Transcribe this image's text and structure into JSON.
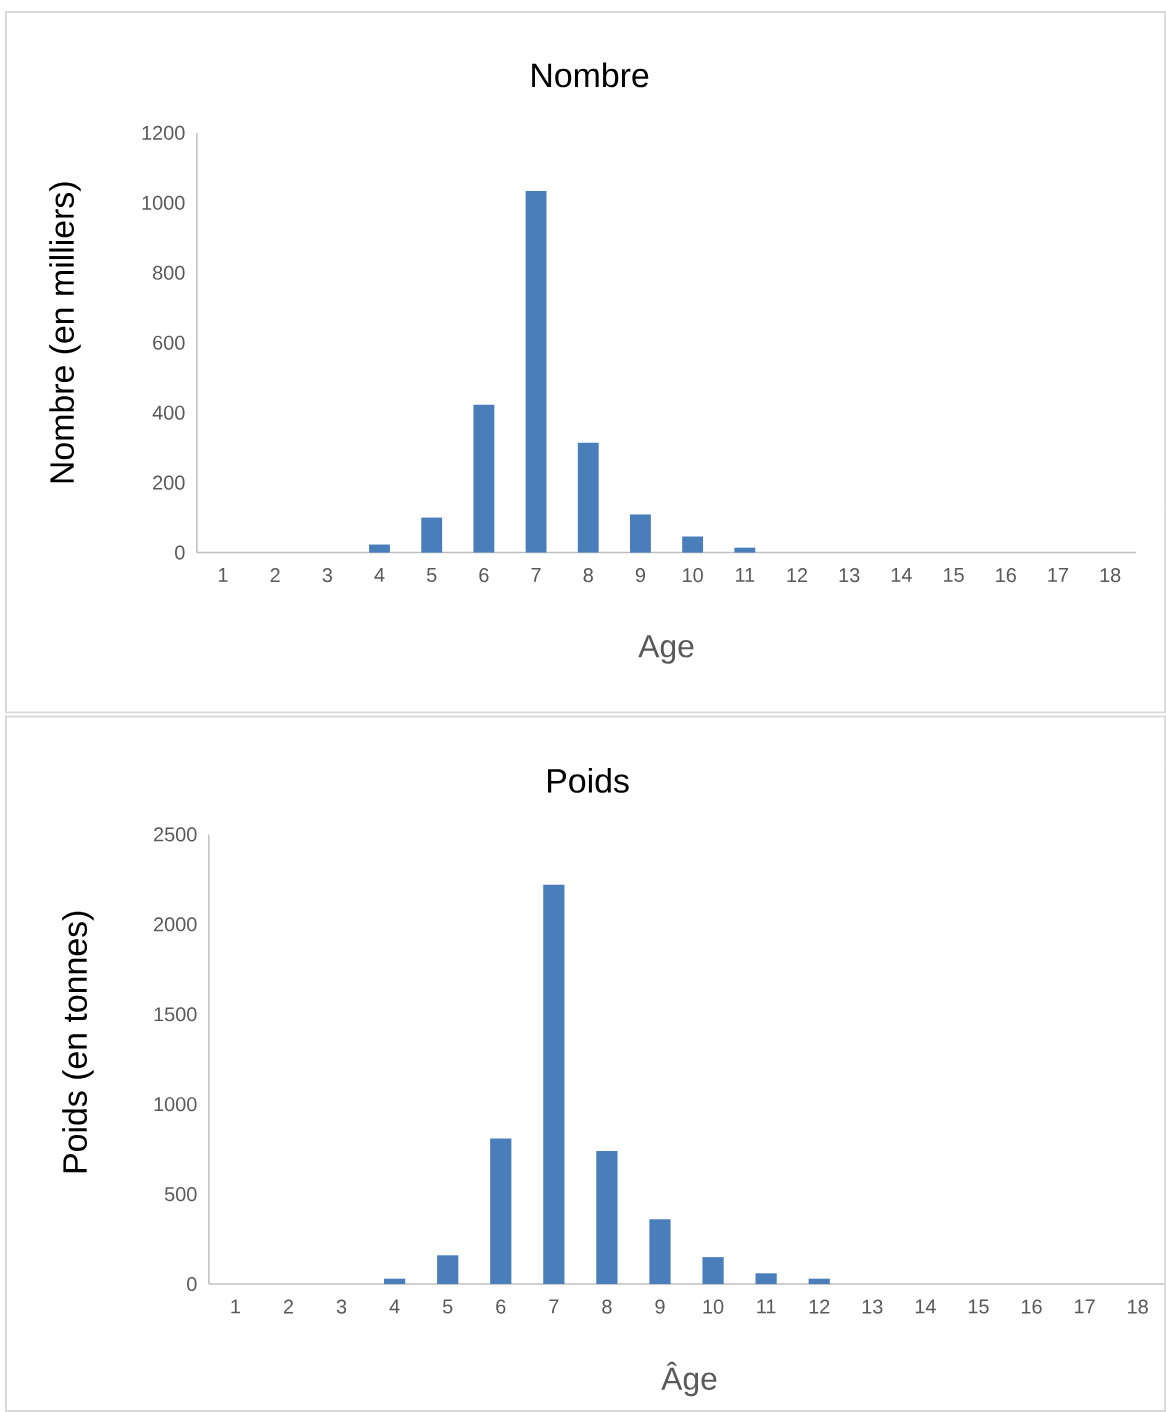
{
  "chart_data": [
    {
      "type": "bar",
      "title": "Nombre",
      "xlabel": "Age",
      "ylabel": "Nombre (en milliers)",
      "categories": [
        "1",
        "2",
        "3",
        "4",
        "5",
        "6",
        "7",
        "8",
        "9",
        "10",
        "11",
        "12",
        "13",
        "14",
        "15",
        "16",
        "17",
        "18"
      ],
      "values": [
        0,
        0,
        0,
        23,
        100,
        423,
        1034,
        314,
        109,
        46,
        14,
        0,
        0,
        0,
        0,
        0,
        0,
        0
      ],
      "color": "#4a7ebb",
      "ylim": [
        0,
        1200
      ],
      "yticks": [
        0,
        200,
        400,
        600,
        800,
        1000,
        1200
      ]
    },
    {
      "type": "bar",
      "title": "Poids",
      "xlabel": "Âge",
      "ylabel": "Poids (en tonnes)",
      "categories": [
        "1",
        "2",
        "3",
        "4",
        "5",
        "6",
        "7",
        "8",
        "9",
        "10",
        "11",
        "12",
        "13",
        "14",
        "15",
        "16",
        "17",
        "18"
      ],
      "values": [
        0,
        0,
        0,
        30,
        160,
        810,
        2220,
        740,
        360,
        150,
        60,
        30,
        0,
        0,
        0,
        0,
        0,
        0
      ],
      "color": "#4a7ebb",
      "ylim": [
        0,
        2500
      ],
      "yticks": [
        0,
        500,
        1000,
        1500,
        2000,
        2500
      ]
    }
  ]
}
